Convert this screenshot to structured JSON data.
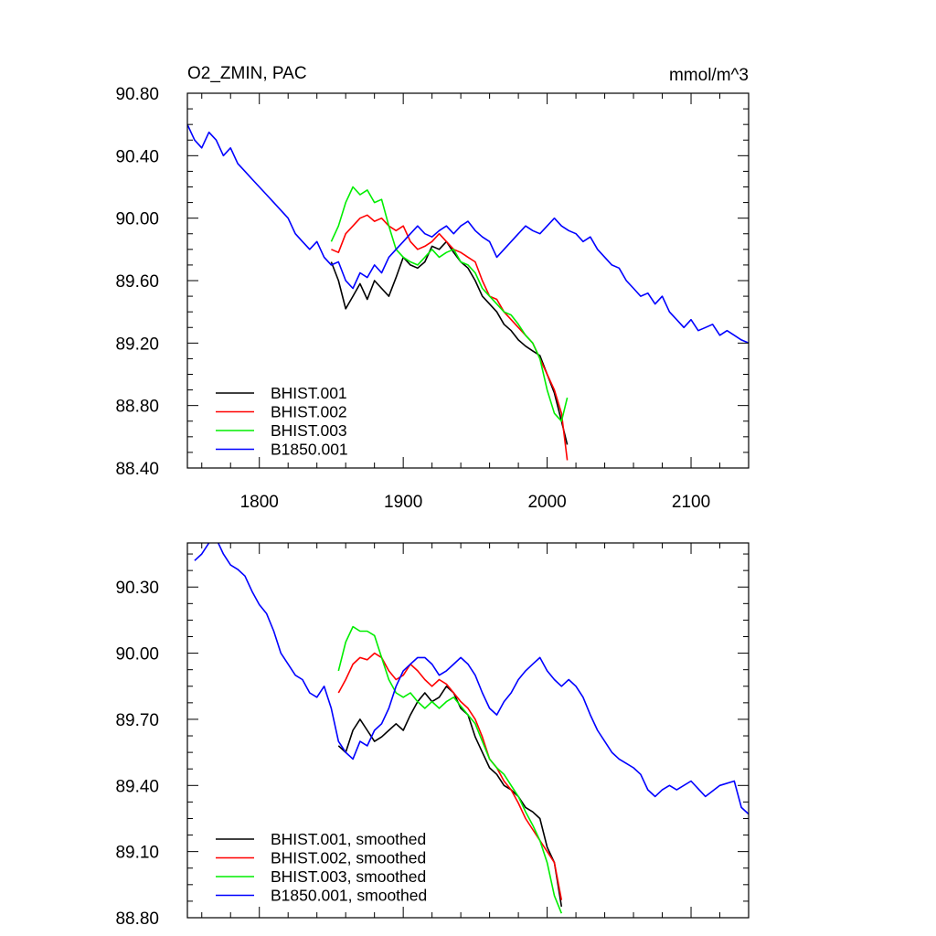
{
  "chart_data": [
    {
      "type": "line",
      "title_left": "O2_ZMIN, PAC",
      "title_right": "mmol/m^3",
      "xlim": [
        1750,
        2140
      ],
      "ylim": [
        88.4,
        90.8
      ],
      "xticks": [
        1800,
        1900,
        2000,
        2100
      ],
      "xtick_labels": [
        "1800",
        "1900",
        "2000",
        "2100"
      ],
      "yticks": [
        88.4,
        88.8,
        89.2,
        89.6,
        90.0,
        90.4,
        90.8
      ],
      "ytick_labels": [
        "88.40",
        "88.80",
        "89.20",
        "89.60",
        "90.00",
        "90.40",
        "90.80"
      ],
      "legend_position": "bottom-left",
      "series": [
        {
          "name": "BHIST.001",
          "color": "#000000",
          "x": [
            1850,
            1855,
            1860,
            1865,
            1870,
            1875,
            1880,
            1885,
            1890,
            1895,
            1900,
            1905,
            1910,
            1915,
            1920,
            1925,
            1930,
            1935,
            1940,
            1945,
            1950,
            1955,
            1960,
            1965,
            1970,
            1975,
            1980,
            1985,
            1990,
            1995,
            2000,
            2005,
            2010,
            2014
          ],
          "y": [
            89.72,
            89.6,
            89.42,
            89.5,
            89.58,
            89.48,
            89.6,
            89.55,
            89.5,
            89.62,
            89.75,
            89.7,
            89.68,
            89.72,
            89.82,
            89.8,
            89.85,
            89.78,
            89.72,
            89.68,
            89.6,
            89.5,
            89.45,
            89.4,
            89.32,
            89.28,
            89.22,
            89.18,
            89.15,
            89.12,
            89.0,
            88.88,
            88.7,
            88.55
          ]
        },
        {
          "name": "BHIST.002",
          "color": "#ff0000",
          "x": [
            1850,
            1855,
            1860,
            1865,
            1870,
            1875,
            1880,
            1885,
            1890,
            1895,
            1900,
            1905,
            1910,
            1915,
            1920,
            1925,
            1930,
            1935,
            1940,
            1945,
            1950,
            1955,
            1960,
            1965,
            1970,
            1975,
            1980,
            1985,
            1990,
            1995,
            2000,
            2005,
            2010,
            2014
          ],
          "y": [
            89.8,
            89.78,
            89.9,
            89.95,
            90.0,
            90.02,
            89.98,
            90.0,
            89.95,
            89.92,
            89.95,
            89.85,
            89.8,
            89.82,
            89.85,
            89.9,
            89.85,
            89.8,
            89.78,
            89.75,
            89.72,
            89.6,
            89.5,
            89.48,
            89.4,
            89.35,
            89.3,
            89.25,
            89.2,
            89.1,
            89.0,
            88.9,
            88.75,
            88.45
          ]
        },
        {
          "name": "BHIST.003",
          "color": "#00ee00",
          "x": [
            1850,
            1855,
            1860,
            1865,
            1870,
            1875,
            1880,
            1885,
            1890,
            1895,
            1900,
            1905,
            1910,
            1915,
            1920,
            1925,
            1930,
            1935,
            1940,
            1945,
            1950,
            1955,
            1960,
            1965,
            1970,
            1975,
            1980,
            1985,
            1990,
            1995,
            2000,
            2005,
            2010,
            2014
          ],
          "y": [
            89.85,
            89.95,
            90.1,
            90.2,
            90.15,
            90.18,
            90.1,
            90.12,
            89.95,
            89.8,
            89.75,
            89.72,
            89.7,
            89.75,
            89.8,
            89.75,
            89.78,
            89.8,
            89.72,
            89.7,
            89.65,
            89.55,
            89.5,
            89.45,
            89.4,
            89.38,
            89.32,
            89.25,
            89.2,
            89.1,
            88.9,
            88.75,
            88.7,
            88.85
          ]
        },
        {
          "name": "B1850.001",
          "color": "#0000ff",
          "x": [
            1750,
            1755,
            1760,
            1765,
            1770,
            1775,
            1780,
            1785,
            1790,
            1795,
            1800,
            1805,
            1810,
            1815,
            1820,
            1825,
            1830,
            1835,
            1840,
            1845,
            1850,
            1855,
            1860,
            1865,
            1870,
            1875,
            1880,
            1885,
            1890,
            1895,
            1900,
            1905,
            1910,
            1915,
            1920,
            1925,
            1930,
            1935,
            1940,
            1945,
            1950,
            1955,
            1960,
            1965,
            1970,
            1975,
            1980,
            1985,
            1990,
            1995,
            2000,
            2005,
            2010,
            2015,
            2020,
            2025,
            2030,
            2035,
            2040,
            2045,
            2050,
            2055,
            2060,
            2065,
            2070,
            2075,
            2080,
            2085,
            2090,
            2095,
            2100,
            2105,
            2110,
            2115,
            2120,
            2125,
            2130,
            2135,
            2140
          ],
          "y": [
            90.6,
            90.5,
            90.45,
            90.55,
            90.5,
            90.4,
            90.45,
            90.35,
            90.3,
            90.25,
            90.2,
            90.15,
            90.1,
            90.05,
            90.0,
            89.9,
            89.85,
            89.8,
            89.85,
            89.75,
            89.7,
            89.72,
            89.6,
            89.55,
            89.65,
            89.62,
            89.7,
            89.65,
            89.75,
            89.8,
            89.85,
            89.9,
            89.95,
            89.9,
            89.88,
            89.92,
            89.95,
            89.9,
            89.95,
            89.98,
            89.92,
            89.88,
            89.85,
            89.75,
            89.8,
            89.85,
            89.9,
            89.95,
            89.92,
            89.9,
            89.95,
            90.0,
            89.95,
            89.92,
            89.9,
            89.85,
            89.88,
            89.8,
            89.75,
            89.7,
            89.68,
            89.6,
            89.55,
            89.5,
            89.52,
            89.45,
            89.5,
            89.4,
            89.35,
            89.3,
            89.35,
            89.28,
            89.3,
            89.32,
            89.25,
            89.28,
            89.25,
            89.22,
            89.2
          ]
        }
      ]
    },
    {
      "type": "line",
      "xlim": [
        1750,
        2140
      ],
      "ylim": [
        88.8,
        90.5
      ],
      "xticks": [
        1800,
        1900,
        2000,
        2100
      ],
      "yticks": [
        88.8,
        89.1,
        89.4,
        89.7,
        90.0,
        90.3
      ],
      "ytick_labels": [
        "88.80",
        "89.10",
        "89.40",
        "89.70",
        "90.00",
        "90.30"
      ],
      "legend_position": "bottom-left",
      "series": [
        {
          "name": "BHIST.001, smoothed",
          "color": "#000000",
          "x": [
            1855,
            1860,
            1865,
            1870,
            1875,
            1880,
            1885,
            1890,
            1895,
            1900,
            1905,
            1910,
            1915,
            1920,
            1925,
            1930,
            1935,
            1940,
            1945,
            1950,
            1955,
            1960,
            1965,
            1970,
            1975,
            1980,
            1985,
            1990,
            1995,
            2000,
            2005,
            2010
          ],
          "y": [
            89.58,
            89.55,
            89.65,
            89.7,
            89.65,
            89.6,
            89.62,
            89.65,
            89.68,
            89.65,
            89.72,
            89.78,
            89.82,
            89.78,
            89.8,
            89.85,
            89.82,
            89.75,
            89.72,
            89.62,
            89.55,
            89.48,
            89.45,
            89.4,
            89.38,
            89.35,
            89.3,
            89.28,
            89.25,
            89.12,
            89.05,
            88.85
          ]
        },
        {
          "name": "BHIST.002, smoothed",
          "color": "#ff0000",
          "x": [
            1855,
            1860,
            1865,
            1870,
            1875,
            1880,
            1885,
            1890,
            1895,
            1900,
            1905,
            1910,
            1915,
            1920,
            1925,
            1930,
            1935,
            1940,
            1945,
            1950,
            1955,
            1960,
            1965,
            1970,
            1975,
            1980,
            1985,
            1990,
            1995,
            2000,
            2005,
            2010
          ],
          "y": [
            89.82,
            89.88,
            89.95,
            89.98,
            89.97,
            90.0,
            89.98,
            89.92,
            89.88,
            89.9,
            89.95,
            89.92,
            89.88,
            89.85,
            89.88,
            89.86,
            89.82,
            89.78,
            89.75,
            89.7,
            89.62,
            89.52,
            89.48,
            89.42,
            89.38,
            89.32,
            89.25,
            89.2,
            89.15,
            89.1,
            89.05,
            88.88
          ]
        },
        {
          "name": "BHIST.003, smoothed",
          "color": "#00ee00",
          "x": [
            1855,
            1860,
            1865,
            1870,
            1875,
            1880,
            1885,
            1890,
            1895,
            1900,
            1905,
            1910,
            1915,
            1920,
            1925,
            1930,
            1935,
            1940,
            1945,
            1950,
            1955,
            1960,
            1965,
            1970,
            1975,
            1980,
            1985,
            1990,
            1995,
            2000,
            2005,
            2010
          ],
          "y": [
            89.92,
            90.05,
            90.12,
            90.1,
            90.1,
            90.08,
            89.98,
            89.88,
            89.82,
            89.8,
            89.82,
            89.78,
            89.75,
            89.78,
            89.75,
            89.78,
            89.8,
            89.76,
            89.72,
            89.68,
            89.6,
            89.52,
            89.48,
            89.45,
            89.4,
            89.35,
            89.28,
            89.22,
            89.15,
            89.05,
            88.9,
            88.82
          ]
        },
        {
          "name": "B1850.001, smoothed",
          "color": "#0000ff",
          "x": [
            1755,
            1760,
            1765,
            1770,
            1775,
            1780,
            1785,
            1790,
            1795,
            1800,
            1805,
            1810,
            1815,
            1820,
            1825,
            1830,
            1835,
            1840,
            1845,
            1850,
            1855,
            1860,
            1865,
            1870,
            1875,
            1880,
            1885,
            1890,
            1895,
            1900,
            1905,
            1910,
            1915,
            1920,
            1925,
            1930,
            1935,
            1940,
            1945,
            1950,
            1955,
            1960,
            1965,
            1970,
            1975,
            1980,
            1985,
            1990,
            1995,
            2000,
            2005,
            2010,
            2015,
            2020,
            2025,
            2030,
            2035,
            2040,
            2045,
            2050,
            2055,
            2060,
            2065,
            2070,
            2075,
            2080,
            2085,
            2090,
            2100,
            2110,
            2120,
            2130,
            2135,
            2140
          ],
          "y": [
            90.42,
            90.45,
            90.5,
            90.52,
            90.45,
            90.4,
            90.38,
            90.35,
            90.28,
            90.22,
            90.18,
            90.1,
            90.0,
            89.95,
            89.9,
            89.88,
            89.82,
            89.8,
            89.85,
            89.75,
            89.6,
            89.55,
            89.52,
            89.6,
            89.58,
            89.65,
            89.68,
            89.75,
            89.85,
            89.92,
            89.95,
            89.98,
            89.98,
            89.95,
            89.9,
            89.92,
            89.95,
            89.98,
            89.95,
            89.9,
            89.82,
            89.75,
            89.72,
            89.78,
            89.82,
            89.88,
            89.92,
            89.95,
            89.98,
            89.92,
            89.88,
            89.85,
            89.88,
            89.85,
            89.8,
            89.72,
            89.65,
            89.6,
            89.55,
            89.52,
            89.5,
            89.48,
            89.45,
            89.38,
            89.35,
            89.38,
            89.4,
            89.38,
            89.42,
            89.35,
            89.4,
            89.42,
            89.3,
            89.27
          ]
        }
      ]
    }
  ]
}
